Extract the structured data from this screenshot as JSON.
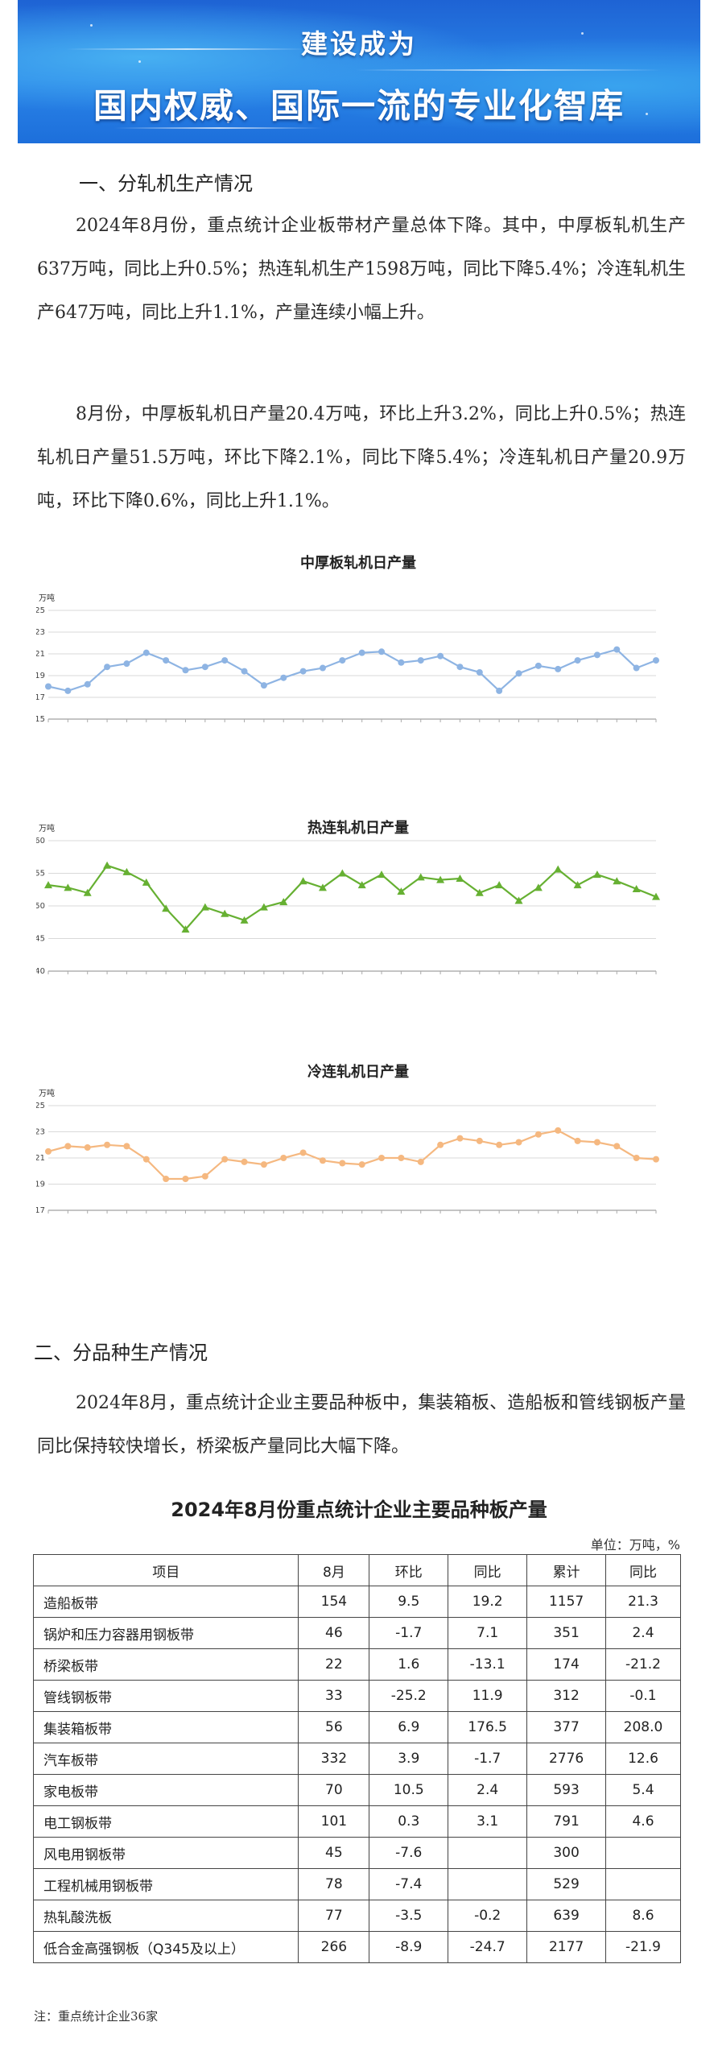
{
  "banner": {
    "line1": "建设成为",
    "line2": "国内权威、国际一流的专业化智库"
  },
  "section1": {
    "heading": "一、分轧机生产情况",
    "para1": "2024年8月份，重点统计企业板带材产量总体下降。其中，中厚板轧机生产637万吨，同比上升0.5%；热连轧机生产1598万吨，同比下降5.4%；冷连轧机生产647万吨，同比上升1.1%，产量连续小幅上升。",
    "para2": "8月份，中厚板轧机日产量20.4万吨，环比上升3.2%，同比上升0.5%；热连轧机日产量51.5万吨，环比下降2.1%，同比下降5.4%；冷连轧机日产量20.9万吨，环比下降0.6%，同比上升1.1%。"
  },
  "charts_meta": {
    "line_color_1": "#8eb4e3",
    "line_color_2": "#66b032",
    "line_color_3": "#f5b880"
  },
  "chart_data": [
    {
      "type": "line",
      "title": "中厚板轧机日产量",
      "ylabel": "万吨",
      "ylim": [
        15,
        25
      ],
      "yticks": [
        15,
        17,
        19,
        21,
        23,
        25
      ],
      "grid": true,
      "series": [
        {
          "values": [
            18.0,
            17.6,
            18.2,
            19.8,
            20.1,
            21.1,
            20.4,
            19.5,
            19.8,
            20.4,
            19.4,
            18.1,
            18.8,
            19.4,
            19.7,
            20.4,
            21.1,
            21.2,
            20.2,
            20.4,
            20.8,
            19.8,
            19.3,
            17.6,
            19.2,
            19.9,
            19.6,
            20.4,
            20.9,
            21.4,
            19.7,
            20.4
          ]
        }
      ]
    },
    {
      "type": "line",
      "title": "热连轧机日产量",
      "ylabel": "万吨",
      "ylim": [
        40,
        60
      ],
      "yticks": [
        40,
        45,
        50,
        55,
        60
      ],
      "grid": true,
      "series": [
        {
          "values": [
            53.2,
            52.8,
            52.0,
            56.2,
            55.2,
            53.6,
            49.6,
            46.4,
            49.8,
            48.8,
            47.8,
            49.8,
            50.6,
            53.8,
            52.8,
            55.0,
            53.2,
            54.8,
            52.2,
            54.4,
            54.0,
            54.2,
            52.0,
            53.2,
            50.8,
            52.8,
            55.6,
            53.2,
            54.8,
            53.8,
            52.6,
            51.4
          ]
        }
      ]
    },
    {
      "type": "line",
      "title": "冷连轧机日产量",
      "ylabel": "万吨",
      "ylim": [
        17,
        25
      ],
      "yticks": [
        17,
        19,
        21,
        23,
        25
      ],
      "grid": true,
      "series": [
        {
          "values": [
            21.5,
            21.9,
            21.8,
            22.0,
            21.9,
            20.9,
            19.4,
            19.4,
            19.6,
            20.9,
            20.7,
            20.5,
            21.0,
            21.4,
            20.8,
            20.6,
            20.5,
            21.0,
            21.0,
            20.7,
            22.0,
            22.5,
            22.3,
            22.0,
            22.2,
            22.8,
            23.1,
            22.3,
            22.2,
            21.9,
            21.0,
            20.9
          ]
        }
      ]
    }
  ],
  "section2": {
    "heading": "二、分品种生产情况",
    "para": "2024年8月，重点统计企业主要品种板中，集装箱板、造船板和管线钢板产量同比保持较快增长，桥梁板产量同比大幅下降。"
  },
  "table": {
    "title": "2024年8月份重点统计企业主要品种板产量",
    "unit": "单位：万吨，%",
    "headers": [
      "项目",
      "8月",
      "环比",
      "同比",
      "累计",
      "同比"
    ],
    "rows": [
      [
        "造船板带",
        "154",
        "9.5",
        "19.2",
        "1157",
        "21.3"
      ],
      [
        "锅炉和压力容器用钢板带",
        "46",
        "-1.7",
        "7.1",
        "351",
        "2.4"
      ],
      [
        "桥梁板带",
        "22",
        "1.6",
        "-13.1",
        "174",
        "-21.2"
      ],
      [
        "管线钢板带",
        "33",
        "-25.2",
        "11.9",
        "312",
        "-0.1"
      ],
      [
        "集装箱板带",
        "56",
        "6.9",
        "176.5",
        "377",
        "208.0"
      ],
      [
        "汽车板带",
        "332",
        "3.9",
        "-1.7",
        "2776",
        "12.6"
      ],
      [
        "家电板带",
        "70",
        "10.5",
        "2.4",
        "593",
        "5.4"
      ],
      [
        "电工钢板带",
        "101",
        "0.3",
        "3.1",
        "791",
        "4.6"
      ],
      [
        "风电用钢板带",
        "45",
        "-7.6",
        "",
        "300",
        ""
      ],
      [
        "工程机械用钢板带",
        "78",
        "-7.4",
        "",
        "529",
        ""
      ],
      [
        "热轧酸洗板",
        "77",
        "-3.5",
        "-0.2",
        "639",
        "8.6"
      ],
      [
        "低合金高强钢板（Q345及以上）",
        "266",
        "-8.9",
        "-24.7",
        "2177",
        "-21.9"
      ]
    ],
    "note": "注：重点统计企业36家"
  }
}
